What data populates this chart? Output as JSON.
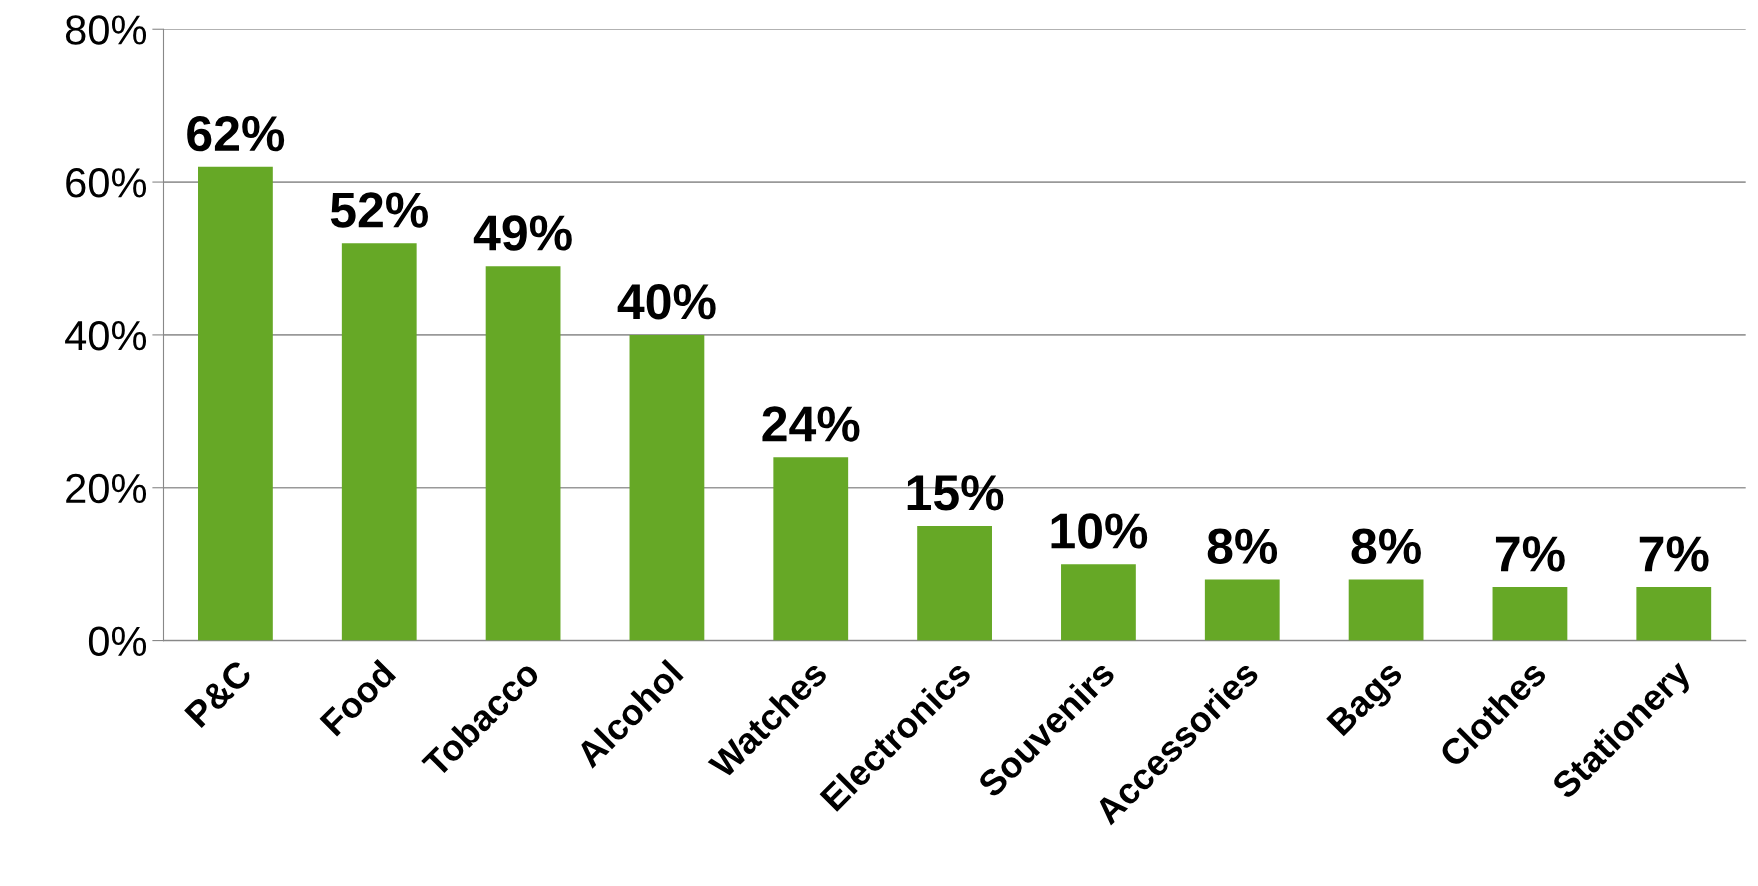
{
  "chart_data": {
    "type": "bar",
    "categories": [
      "P&C",
      "Food",
      "Tobacco",
      "Alcohol",
      "Watches",
      "Electronics",
      "Souvenirs",
      "Accessories",
      "Bags",
      "Clothes",
      "Stationery"
    ],
    "values": [
      62,
      52,
      49,
      40,
      24,
      15,
      10,
      8,
      8,
      7,
      7
    ],
    "value_labels": [
      "62%",
      "52%",
      "49%",
      "40%",
      "24%",
      "15%",
      "10%",
      "8%",
      "8%",
      "7%",
      "7%"
    ],
    "color": "#66a826",
    "ylim": [
      0,
      80
    ],
    "yticks": [
      {
        "value": 0,
        "label": "0%"
      },
      {
        "value": 20,
        "label": "20%"
      },
      {
        "value": 40,
        "label": "40%"
      },
      {
        "value": 60,
        "label": "60%"
      },
      {
        "value": 80,
        "label": "80%"
      }
    ],
    "grid": "y",
    "legend": false
  }
}
